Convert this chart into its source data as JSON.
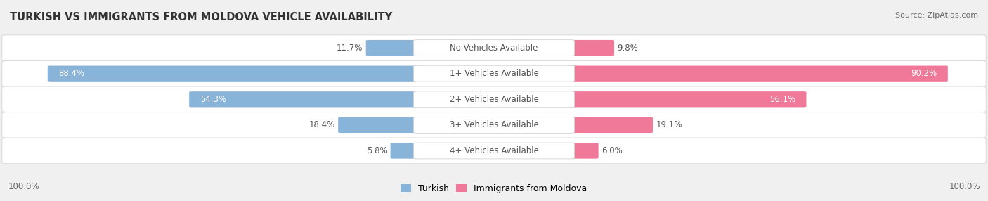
{
  "title": "TURKISH VS IMMIGRANTS FROM MOLDOVA VEHICLE AVAILABILITY",
  "source": "Source: ZipAtlas.com",
  "categories": [
    "No Vehicles Available",
    "1+ Vehicles Available",
    "2+ Vehicles Available",
    "3+ Vehicles Available",
    "4+ Vehicles Available"
  ],
  "turkish_values": [
    11.7,
    88.4,
    54.3,
    18.4,
    5.8
  ],
  "moldova_values": [
    9.8,
    90.2,
    56.1,
    19.1,
    6.0
  ],
  "turkish_color": "#89b4d9",
  "moldova_color": "#f07898",
  "bg_color": "#f0f0f0",
  "row_bg_color": "#ffffff",
  "label_fontsize": 8.5,
  "title_fontsize": 10.5,
  "source_fontsize": 8,
  "legend_fontsize": 9
}
